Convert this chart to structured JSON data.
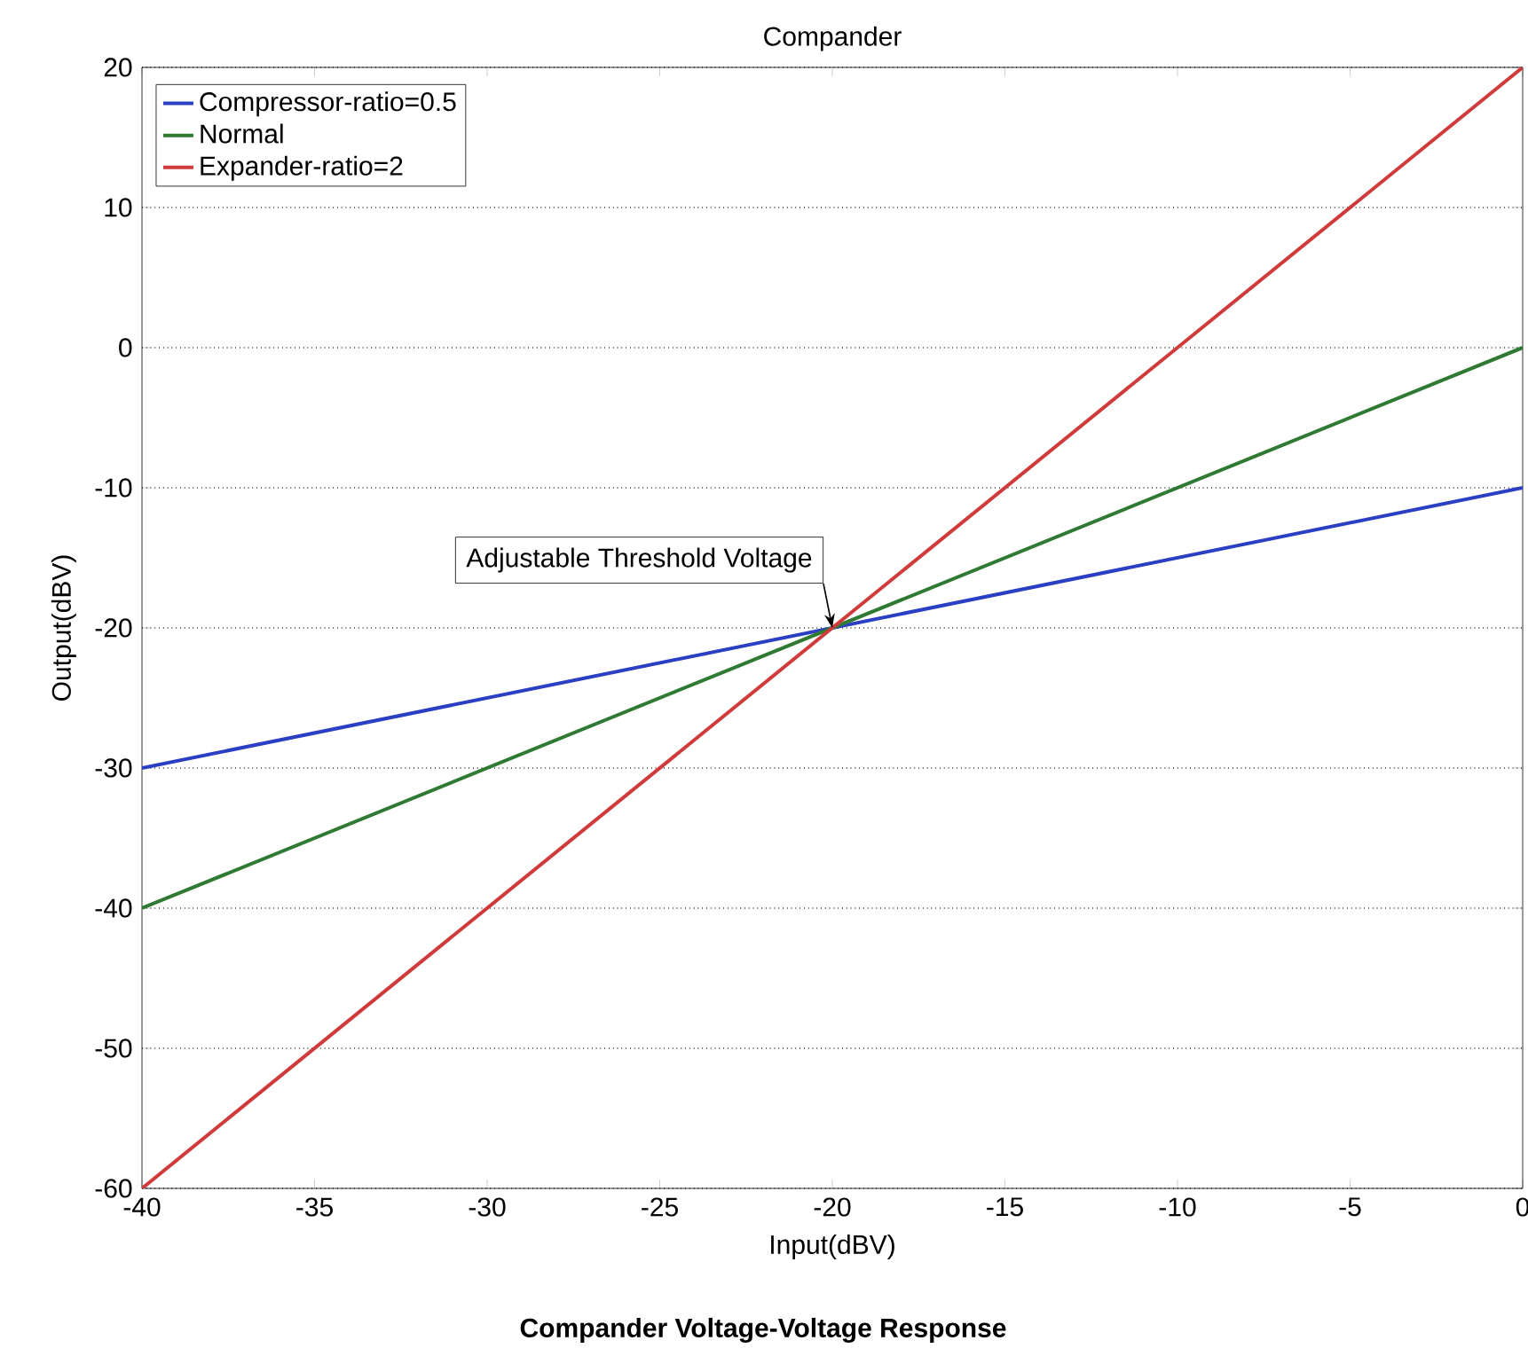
{
  "chart_data": {
    "type": "line",
    "title": "Compander",
    "xlabel": "Input(dBV)",
    "ylabel": "Output(dBV)",
    "x": [
      -40,
      0
    ],
    "series": [
      {
        "name": "Compressor-ratio=0.5",
        "color": "#2b3fc4",
        "values": [
          -30,
          -10
        ]
      },
      {
        "name": "Normal",
        "color": "#2e7a32",
        "values": [
          -40,
          0
        ]
      },
      {
        "name": "Expander-ratio=2",
        "color": "#d03a3a",
        "values": [
          -60,
          20
        ]
      }
    ],
    "xlim": [
      -40,
      0
    ],
    "ylim": [
      -60,
      20
    ],
    "xticks": [
      -40,
      -35,
      -30,
      -25,
      -20,
      -15,
      -10,
      -5,
      0
    ],
    "yticks": [
      -60,
      -50,
      -40,
      -30,
      -20,
      -10,
      0,
      10,
      20
    ],
    "grid": "y",
    "legend": "top left",
    "marker": "none",
    "line_style": "solid",
    "annotations": [
      {
        "text": "Adjustable Threshold Voltage",
        "x": -20,
        "y": -20
      },
      "Compander Voltage-Voltage Response"
    ]
  }
}
